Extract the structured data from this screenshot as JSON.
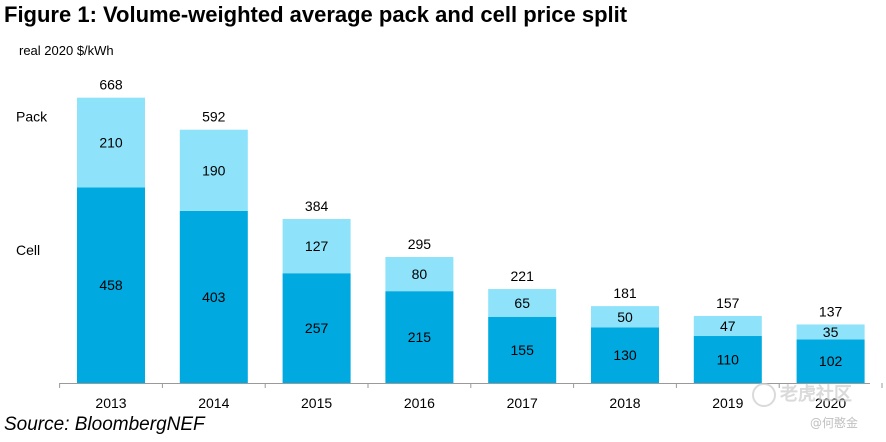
{
  "figure": {
    "title": "Figure 1: Volume-weighted average pack and cell price split",
    "unit_label": "real 2020 $/kWh",
    "source": "Source: BloombergNEF"
  },
  "chart_data": {
    "type": "bar",
    "stacked": true,
    "title": "Figure 1: Volume-weighted average pack and cell price split",
    "ylabel": "real 2020 $/kWh",
    "xlabel": "",
    "ylim": [
      0,
      700
    ],
    "grid": false,
    "categories": [
      "2013",
      "2014",
      "2015",
      "2016",
      "2017",
      "2018",
      "2019",
      "2020"
    ],
    "series": [
      {
        "name": "Cell",
        "values": [
          458,
          403,
          257,
          215,
          155,
          130,
          110,
          102
        ],
        "color": "#00a9e0"
      },
      {
        "name": "Pack",
        "values": [
          210,
          190,
          127,
          80,
          65,
          50,
          47,
          35
        ],
        "color": "#8ee3fb"
      }
    ],
    "totals": [
      668,
      592,
      384,
      295,
      221,
      181,
      157,
      137
    ]
  },
  "watermark": {
    "main": "老虎社区",
    "sub": "@何憨金"
  }
}
